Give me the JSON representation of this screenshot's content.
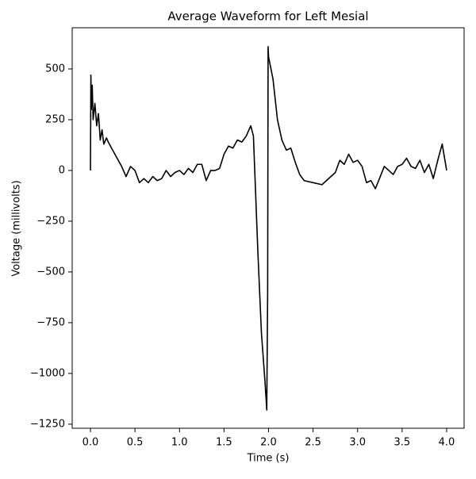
{
  "chart_data": {
    "type": "line",
    "title": "Average Waveform for Left Mesial",
    "x_label": "Time (s)",
    "y_label": "Voltage (millivolts)",
    "xlim": [
      -0.205,
      4.196
    ],
    "ylim": [
      -1270,
      703
    ],
    "xticks": [
      {
        "value": 0,
        "label": "0.0"
      },
      0.5,
      {
        "value": 1,
        "label": "1.0"
      },
      1.5,
      {
        "value": 2,
        "label": "2.0"
      },
      2.5,
      {
        "value": 3,
        "label": "3.0"
      },
      3.5,
      {
        "value": 4,
        "label": "4.0"
      }
    ],
    "yticks": [
      {
        "value": -1250,
        "label": "−1250"
      },
      {
        "value": -1000,
        "label": "−1000"
      },
      {
        "value": -750,
        "label": "−750"
      },
      {
        "value": -500,
        "label": "−500"
      },
      {
        "value": -250,
        "label": "−250"
      },
      0,
      250,
      500
    ],
    "grid": false,
    "series": [
      {
        "color": "#000000",
        "x": [
          0.0,
          0.005,
          0.01,
          0.02,
          0.03,
          0.05,
          0.07,
          0.09,
          0.11,
          0.13,
          0.15,
          0.18,
          0.2,
          0.25,
          0.3,
          0.35,
          0.4,
          0.45,
          0.5,
          0.55,
          0.6,
          0.65,
          0.7,
          0.75,
          0.8,
          0.85,
          0.9,
          0.95,
          1.0,
          1.05,
          1.1,
          1.15,
          1.2,
          1.25,
          1.3,
          1.35,
          1.4,
          1.45,
          1.5,
          1.55,
          1.6,
          1.65,
          1.7,
          1.75,
          1.8,
          1.83,
          1.88,
          1.92,
          1.96,
          1.98,
          1.99,
          1.995,
          2.0,
          2.05,
          2.1,
          2.15,
          2.2,
          2.25,
          2.3,
          2.35,
          2.4,
          2.5,
          2.6,
          2.7,
          2.75,
          2.8,
          2.85,
          2.9,
          2.95,
          3.0,
          3.05,
          3.1,
          3.15,
          3.2,
          3.3,
          3.4,
          3.45,
          3.5,
          3.55,
          3.6,
          3.65,
          3.7,
          3.75,
          3.8,
          3.85,
          3.9,
          3.95,
          4.0
        ],
        "values": [
          0,
          470,
          300,
          420,
          250,
          330,
          220,
          280,
          150,
          200,
          130,
          160,
          140,
          100,
          60,
          20,
          -30,
          20,
          0,
          -60,
          -40,
          -60,
          -30,
          -50,
          -40,
          0,
          -30,
          -10,
          0,
          -20,
          10,
          -10,
          30,
          30,
          -50,
          0,
          0,
          10,
          80,
          120,
          110,
          150,
          140,
          170,
          220,
          170,
          -400,
          -800,
          -1040,
          -1180,
          -600,
          610,
          560,
          450,
          250,
          150,
          100,
          110,
          40,
          -20,
          -50,
          -60,
          -70,
          -30,
          -10,
          50,
          30,
          80,
          40,
          50,
          20,
          -60,
          -50,
          -90,
          20,
          -20,
          20,
          30,
          60,
          20,
          10,
          50,
          -10,
          30,
          -40,
          50,
          130,
          0
        ]
      }
    ]
  }
}
